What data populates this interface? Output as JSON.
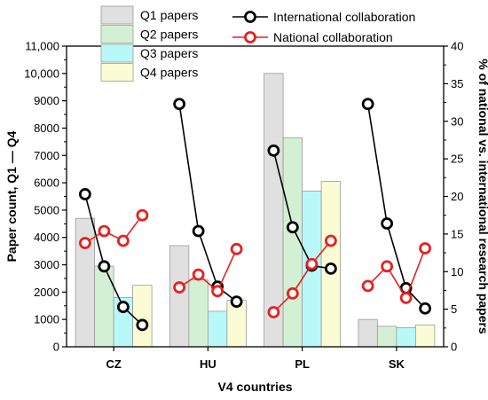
{
  "chart_data": {
    "type": "bar",
    "categories": [
      "CZ",
      "HU",
      "PL",
      "SK"
    ],
    "xlabel": "V4 countries",
    "ylabel": "Paper count, Q1 — Q4",
    "y2label": "% of national vs. international research papers",
    "ylim": [
      0,
      11000
    ],
    "yticks": [
      0,
      1000,
      2000,
      3000,
      4000,
      5000,
      6000,
      7000,
      8000,
      9000,
      10000,
      11000
    ],
    "yticklabels": [
      "0",
      "1000",
      "2000",
      "3000",
      "4000",
      "5000",
      "6000",
      "7000",
      "8000",
      "9000",
      "10,000",
      "11,000"
    ],
    "y2lim": [
      0,
      40
    ],
    "y2ticks": [
      0,
      5,
      10,
      15,
      20,
      25,
      30,
      35,
      40
    ],
    "y2ticklabels": [
      "0",
      "5",
      "10",
      "15",
      "20",
      "25",
      "30",
      "35",
      "40"
    ],
    "grid": false,
    "legend_position": "top",
    "series": [
      {
        "name": "Q1 papers",
        "color": "#e0e0e0",
        "values": [
          4700,
          3700,
          10000,
          1000
        ]
      },
      {
        "name": "Q2 papers",
        "color": "#d4f0d4",
        "values": [
          2950,
          2450,
          7650,
          750
        ]
      },
      {
        "name": "Q3 papers",
        "color": "#b8f8f8",
        "values": [
          1800,
          1300,
          5700,
          700
        ]
      },
      {
        "name": "Q4 papers",
        "color": "#fcfcd4",
        "values": [
          2250,
          1700,
          6050,
          800
        ]
      }
    ],
    "lines": [
      {
        "name": "International collaboration",
        "color": "#000000",
        "axis": "right",
        "values": [
          [
            20.3,
            10.7,
            5.3,
            2.9
          ],
          [
            32.3,
            15.4,
            8.0,
            6.0
          ],
          [
            26.1,
            15.9,
            10.8,
            10.4
          ],
          [
            32.3,
            16.4,
            7.8,
            5.1
          ]
        ]
      },
      {
        "name": "National collaboration",
        "color": "#e82020",
        "axis": "right",
        "values": [
          [
            13.8,
            15.4,
            14.1,
            17.5
          ],
          [
            7.9,
            9.6,
            7.4,
            13.0
          ],
          [
            4.6,
            7.1,
            11.0,
            14.1
          ],
          [
            8.1,
            10.7,
            6.5,
            13.1
          ]
        ]
      }
    ]
  }
}
